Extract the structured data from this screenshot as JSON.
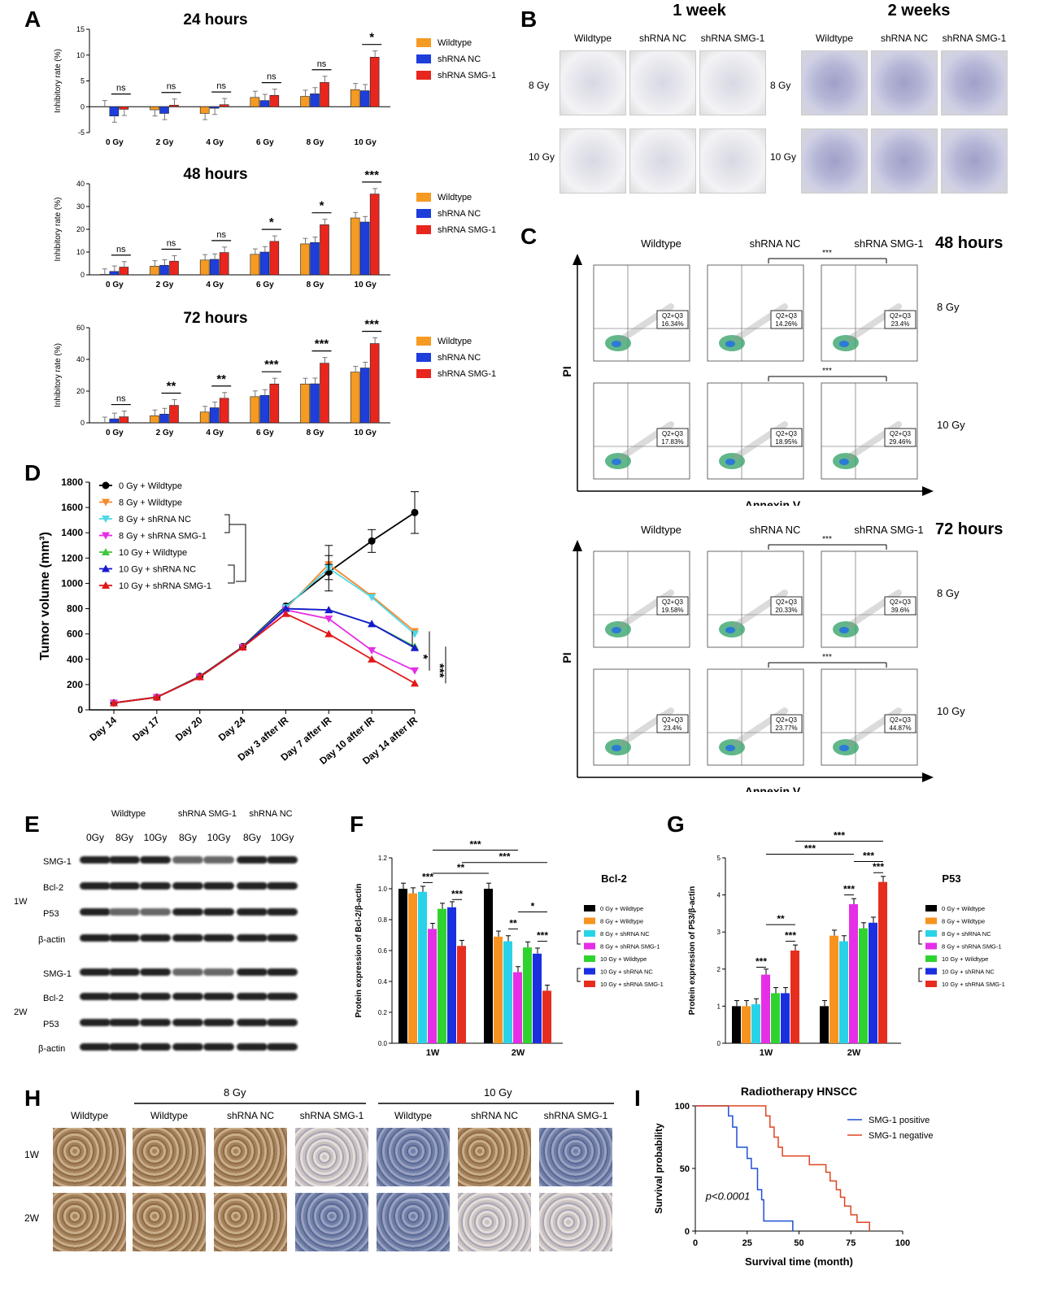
{
  "labels": {
    "A": "A",
    "B": "B",
    "C": "C",
    "D": "D",
    "E": "E",
    "F": "F",
    "G": "G",
    "H": "H",
    "I": "I"
  },
  "panelA": {
    "legend": [
      "Wildtype",
      "shRNA NC",
      "shRNA SMG-1"
    ],
    "colors": [
      "#f59a23",
      "#1d3edb",
      "#e8261e"
    ],
    "categories": [
      "0 Gy",
      "2 Gy",
      "4 Gy",
      "6 Gy",
      "8 Gy",
      "10 Gy"
    ],
    "ylabel": "Inhibitory rate (%)"
  },
  "chart_data": [
    {
      "type": "bar",
      "title": "24 hours",
      "ylabel": "Inhibitory rate (%)",
      "ylim": [
        -5,
        15
      ],
      "yticks": [
        -5,
        0,
        5,
        10,
        15
      ],
      "categories": [
        "0 Gy",
        "2 Gy",
        "4 Gy",
        "6 Gy",
        "8 Gy",
        "10 Gy"
      ],
      "series": [
        {
          "name": "Wildtype",
          "values": [
            0,
            -0.6,
            -1.3,
            1.8,
            2.0,
            3.3
          ]
        },
        {
          "name": "shRNA NC",
          "values": [
            -1.8,
            -1.3,
            -0.3,
            1.2,
            2.5,
            3.1
          ]
        },
        {
          "name": "shRNA SMG-1",
          "values": [
            -0.5,
            0.3,
            0.4,
            2.2,
            4.7,
            9.6
          ]
        }
      ],
      "sig": [
        "ns",
        "ns",
        "ns",
        "ns",
        "ns",
        "*"
      ]
    },
    {
      "type": "bar",
      "title": "48 hours",
      "ylabel": "Inhibitory rate (%)",
      "ylim": [
        0,
        40
      ],
      "yticks": [
        0,
        10,
        20,
        30,
        40
      ],
      "categories": [
        "0 Gy",
        "2 Gy",
        "4 Gy",
        "6 Gy",
        "8 Gy",
        "10 Gy"
      ],
      "series": [
        {
          "name": "Wildtype",
          "values": [
            0.2,
            3.8,
            6.5,
            9.0,
            13.6,
            25.0
          ]
        },
        {
          "name": "shRNA NC",
          "values": [
            1.5,
            4.2,
            6.8,
            10.0,
            14.2,
            23.2
          ]
        },
        {
          "name": "shRNA SMG-1",
          "values": [
            3.4,
            6.0,
            9.8,
            14.7,
            22.0,
            35.5
          ]
        }
      ],
      "sig": [
        "ns",
        "ns",
        "ns",
        "*",
        "*",
        "***"
      ]
    },
    {
      "type": "bar",
      "title": "72 hours",
      "ylabel": "Inhibitory rate (%)",
      "ylim": [
        0,
        60
      ],
      "yticks": [
        0,
        20,
        40,
        60
      ],
      "categories": [
        "0 Gy",
        "2 Gy",
        "4 Gy",
        "6 Gy",
        "8 Gy",
        "10 Gy"
      ],
      "series": [
        {
          "name": "Wildtype",
          "values": [
            0,
            4.5,
            6.8,
            16.5,
            24.5,
            32.0
          ]
        },
        {
          "name": "shRNA NC",
          "values": [
            2.5,
            5.5,
            9.5,
            17.3,
            24.6,
            34.6
          ]
        },
        {
          "name": "shRNA SMG-1",
          "values": [
            3.8,
            11.0,
            15.5,
            24.5,
            37.6,
            50.0
          ]
        }
      ],
      "sig": [
        "ns",
        "**",
        "**",
        "***",
        "***",
        "***"
      ]
    },
    {
      "type": "line",
      "ylabel": "Tumor volume (mm³)",
      "ylim": [
        0,
        1800
      ],
      "yticks": [
        0,
        200,
        400,
        600,
        800,
        1000,
        1200,
        1400,
        1600,
        1800
      ],
      "categories": [
        "Day 14",
        "Day 17",
        "Day 20",
        "Day 24",
        "Day 3 after IR",
        "Day 7 after IR",
        "Day 10 after IR",
        "Day 14 after IR"
      ],
      "series": [
        {
          "name": "0 Gy + Wildtype",
          "color": "#000000",
          "marker": "circle",
          "values": [
            55,
            100,
            265,
            500,
            820,
            1090,
            1335,
            1560
          ]
        },
        {
          "name": "8 Gy + Wildtype",
          "color": "#f7892a",
          "marker": "tri-down",
          "values": [
            55,
            100,
            260,
            495,
            800,
            1150,
            900,
            620
          ]
        },
        {
          "name": "8 Gy + shRNA NC",
          "color": "#4fd8e8",
          "marker": "tri-down",
          "values": [
            55,
            100,
            260,
            495,
            810,
            1120,
            890,
            600
          ]
        },
        {
          "name": "8 Gy + shRNA SMG-1",
          "color": "#e52ee5",
          "marker": "tri-down",
          "values": [
            55,
            100,
            260,
            495,
            790,
            720,
            470,
            310
          ]
        },
        {
          "name": "10 Gy + Wildtype",
          "color": "#3ec93e",
          "marker": "tri-up",
          "values": [
            55,
            100,
            260,
            495,
            800,
            790,
            680,
            500
          ]
        },
        {
          "name": "10 Gy + shRNA NC",
          "color": "#1818d0",
          "marker": "tri-up",
          "values": [
            55,
            100,
            260,
            495,
            800,
            790,
            680,
            490
          ]
        },
        {
          "name": "10 Gy + shRNA SMG-1",
          "color": "#e01818",
          "marker": "tri-up",
          "values": [
            55,
            100,
            260,
            495,
            760,
            600,
            400,
            210
          ]
        }
      ],
      "sig": [
        "*",
        "***",
        "***"
      ]
    },
    {
      "type": "bar",
      "title": "Bcl-2",
      "ylabel": "Protein expression of Bcl-2/β-actin",
      "ylim": [
        0,
        1.2
      ],
      "yticks": [
        0,
        0.2,
        0.4,
        0.6,
        0.8,
        1.0,
        1.2
      ],
      "categories": [
        "1W",
        "2W"
      ],
      "series": [
        {
          "name": "0 Gy + Wildtype",
          "values": [
            1.0,
            1.0
          ]
        },
        {
          "name": "8 Gy + Wildtype",
          "values": [
            0.97,
            0.69
          ]
        },
        {
          "name": "8 Gy + shRNA NC",
          "values": [
            0.98,
            0.66
          ]
        },
        {
          "name": "8 Gy + shRNA SMG-1",
          "values": [
            0.74,
            0.46
          ]
        },
        {
          "name": "10 Gy + Wildtype",
          "values": [
            0.87,
            0.62
          ]
        },
        {
          "name": "10 Gy + shRNA NC",
          "values": [
            0.88,
            0.58
          ]
        },
        {
          "name": "10 Gy + shRNA SMG-1",
          "values": [
            0.63,
            0.34
          ]
        }
      ]
    },
    {
      "type": "bar",
      "title": "P53",
      "ylabel": "Protein expression of P53/β-actin",
      "ylim": [
        0,
        5
      ],
      "yticks": [
        0,
        1,
        2,
        3,
        4,
        5
      ],
      "categories": [
        "1W",
        "2W"
      ],
      "series": [
        {
          "name": "0 Gy + Wildtype",
          "values": [
            1.0,
            1.0
          ]
        },
        {
          "name": "8 Gy + Wildtype",
          "values": [
            1.0,
            2.9
          ]
        },
        {
          "name": "8 Gy + shRNA NC",
          "values": [
            1.05,
            2.75
          ]
        },
        {
          "name": "8 Gy + shRNA SMG-1",
          "values": [
            1.85,
            3.75
          ]
        },
        {
          "name": "10 Gy + Wildtype",
          "values": [
            1.35,
            3.1
          ]
        },
        {
          "name": "10 Gy + shRNA NC",
          "values": [
            1.35,
            3.25
          ]
        },
        {
          "name": "10 Gy + shRNA SMG-1",
          "values": [
            2.5,
            4.35
          ]
        }
      ]
    },
    {
      "type": "line",
      "title": "Radiotherapy HNSCC",
      "xlabel": "Survival time (month)",
      "ylabel": "Survival probability",
      "xlim": [
        0,
        100
      ],
      "ylim": [
        0,
        100
      ],
      "xticks": [
        0,
        25,
        50,
        75,
        100
      ],
      "yticks": [
        0,
        50,
        100
      ],
      "annotation": "p<0.0001",
      "series": [
        {
          "name": "SMG-1 positive",
          "color": "#1f4fd8",
          "steps": [
            [
              0,
              100
            ],
            [
              16,
              100
            ],
            [
              16,
              92
            ],
            [
              18,
              92
            ],
            [
              18,
              83
            ],
            [
              20,
              83
            ],
            [
              20,
              67
            ],
            [
              25,
              67
            ],
            [
              25,
              58
            ],
            [
              27,
              58
            ],
            [
              27,
              50
            ],
            [
              30,
              50
            ],
            [
              30,
              33
            ],
            [
              32,
              33
            ],
            [
              32,
              25
            ],
            [
              33,
              25
            ],
            [
              33,
              8
            ],
            [
              47,
              8
            ],
            [
              47,
              0
            ]
          ]
        },
        {
          "name": "SMG-1 negative",
          "color": "#e0451f",
          "steps": [
            [
              0,
              100
            ],
            [
              34,
              100
            ],
            [
              34,
              92
            ],
            [
              36,
              92
            ],
            [
              36,
              83
            ],
            [
              38,
              83
            ],
            [
              38,
              75
            ],
            [
              40,
              75
            ],
            [
              40,
              67
            ],
            [
              42,
              67
            ],
            [
              42,
              60
            ],
            [
              55,
              60
            ],
            [
              55,
              53
            ],
            [
              63,
              53
            ],
            [
              63,
              47
            ],
            [
              65,
              47
            ],
            [
              65,
              40
            ],
            [
              68,
              40
            ],
            [
              68,
              33
            ],
            [
              70,
              33
            ],
            [
              70,
              27
            ],
            [
              72,
              27
            ],
            [
              72,
              20
            ],
            [
              75,
              20
            ],
            [
              75,
              13
            ],
            [
              78,
              13
            ],
            [
              78,
              7
            ],
            [
              84,
              7
            ],
            [
              84,
              0
            ]
          ]
        }
      ]
    }
  ],
  "panelB": {
    "wk1": "1 week",
    "wk2": "2 weeks",
    "cols": [
      "Wildtype",
      "shRNA NC",
      "shRNA SMG-1"
    ],
    "rows": [
      "8 Gy",
      "10 Gy"
    ]
  },
  "panelC": {
    "cols": [
      "Wildtype",
      "shRNA NC",
      "shRNA SMG-1"
    ],
    "t48": "48 hours",
    "t72": "72 hours",
    "rows": [
      "8 Gy",
      "10 Gy"
    ],
    "xlabel": "Annexin V",
    "ylabel": "PI",
    "sig": "***",
    "qlabel": "Q2+Q3",
    "values48": [
      [
        "16.34%",
        "14.26%",
        "23.4%"
      ],
      [
        "17.83%",
        "18.95%",
        "29.46%"
      ]
    ],
    "values72": [
      [
        "19.58%",
        "20.33%",
        "39.6%"
      ],
      [
        "23.4%",
        "23.77%",
        "44.87%"
      ]
    ]
  },
  "panelE": {
    "groups": [
      "Wildtype",
      "shRNA SMG-1",
      "shRNA NC"
    ],
    "doses": [
      "0Gy",
      "8Gy",
      "10Gy",
      "8Gy",
      "10Gy",
      "8Gy",
      "10Gy"
    ],
    "proteins": [
      "SMG-1",
      "Bcl-2",
      "P53",
      "β-actin"
    ],
    "weeks": [
      "1W",
      "2W"
    ]
  },
  "panelH": {
    "g8": "8 Gy",
    "g10": "10 Gy",
    "cols": [
      "Wildtype",
      "Wildtype",
      "shRNA NC",
      "shRNA SMG-1",
      "Wildtype",
      "shRNA NC",
      "shRNA SMG-1"
    ],
    "rows": [
      "1W",
      "2W"
    ]
  }
}
